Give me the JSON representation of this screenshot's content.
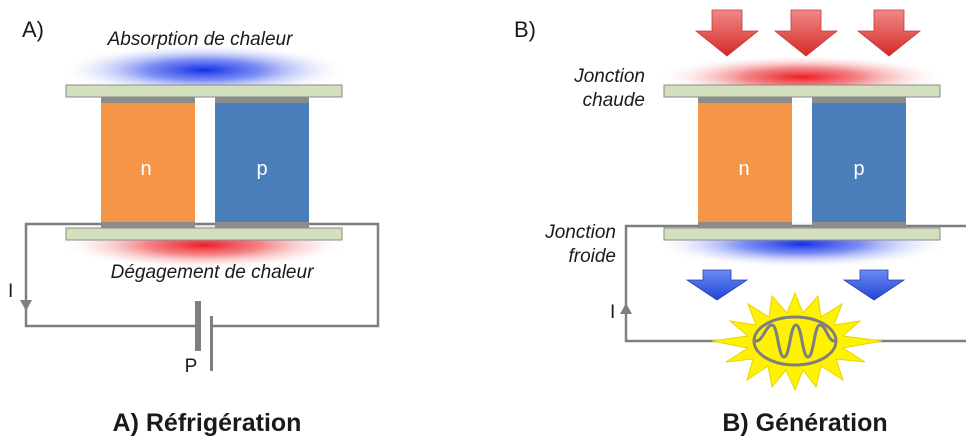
{
  "panel_a": {
    "label": "A)",
    "top_text": "Absorption de chaleur",
    "bottom_text": "Dégagement de chaleur",
    "n_label": "n",
    "p_label": "p",
    "current_label": "I",
    "source_label": "P",
    "caption": "A) Réfrigération"
  },
  "panel_b": {
    "label": "B)",
    "hot_junction_line1": "Jonction",
    "hot_junction_line2": "chaude",
    "cold_junction_line1": "Jonction",
    "cold_junction_line2": "froide",
    "n_label": "n",
    "p_label": "p",
    "current_label": "I",
    "caption": "B) Génération"
  },
  "colors": {
    "n_block": "#f59547",
    "p_block": "#4a7ebb",
    "plate": "#d3e0bd",
    "hot": "#e8262a",
    "cold": "#1c37e0",
    "wire": "#7f7f7f",
    "glow": "#fff200"
  }
}
